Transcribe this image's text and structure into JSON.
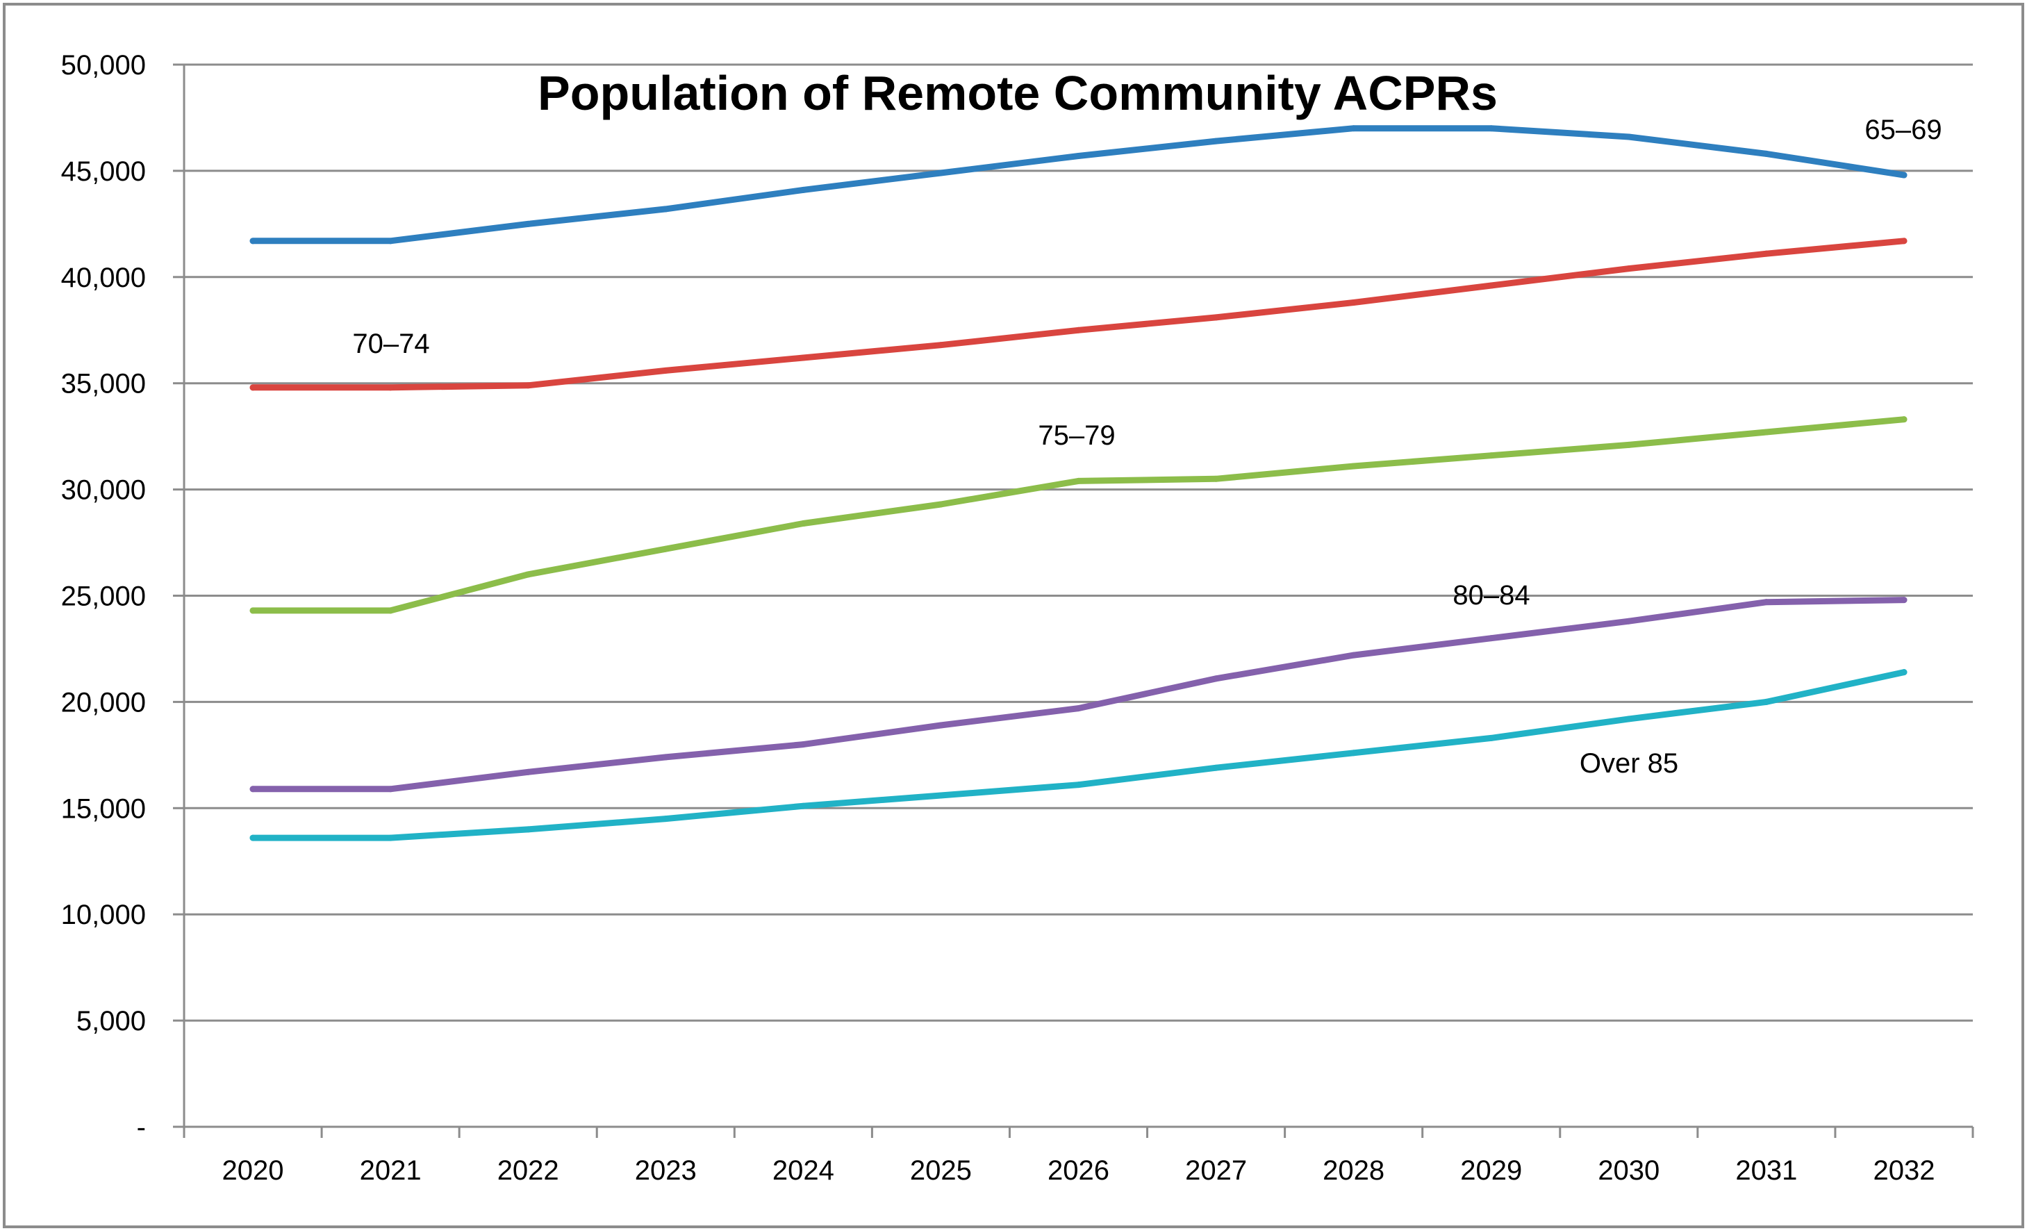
{
  "chart_data": {
    "type": "line",
    "title": "Population of Remote Community ACPRs",
    "xlabel": "",
    "ylabel": "",
    "ylim": [
      0,
      50000
    ],
    "y_ticks": [
      0,
      5000,
      10000,
      15000,
      20000,
      25000,
      30000,
      35000,
      40000,
      45000,
      50000
    ],
    "y_tick_labels": [
      "-",
      "5,000",
      "10,000",
      "15,000",
      "20,000",
      "25,000",
      "30,000",
      "35,000",
      "40,000",
      "45,000",
      "50,000"
    ],
    "categories": [
      "2020",
      "2021",
      "2022",
      "2023",
      "2024",
      "2025",
      "2026",
      "2027",
      "2028",
      "2029",
      "2030",
      "2031",
      "2032"
    ],
    "grid": true,
    "legend": "none",
    "series": [
      {
        "name": "65–69",
        "color": "#2e7fbf",
        "values": [
          41700,
          41700,
          42500,
          43200,
          44100,
          44900,
          45700,
          46400,
          47000,
          47000,
          46600,
          45800,
          44800
        ]
      },
      {
        "name": "70–74",
        "color": "#d9453f",
        "values": [
          34800,
          34800,
          34900,
          35600,
          36200,
          36800,
          37500,
          38100,
          38800,
          39600,
          40400,
          41100,
          41700
        ]
      },
      {
        "name": "75–79",
        "color": "#8cbd4a",
        "values": [
          24300,
          24300,
          26000,
          27200,
          28400,
          29300,
          30400,
          30500,
          31100,
          31600,
          32100,
          32700,
          33300
        ]
      },
      {
        "name": "80–84",
        "color": "#8461ac",
        "values": [
          15900,
          15900,
          16700,
          17400,
          18000,
          18900,
          19700,
          21100,
          22200,
          23000,
          23800,
          24700,
          24800
        ]
      },
      {
        "name": "Over 85",
        "color": "#21b2c6",
        "values": [
          13600,
          13600,
          14000,
          14500,
          15100,
          15600,
          16100,
          16900,
          17600,
          18300,
          19200,
          20000,
          21400
        ]
      }
    ],
    "colors": {
      "grid": "#8c8c8c",
      "axis": "#8c8c8c",
      "frame": "#8c8c8c"
    }
  }
}
